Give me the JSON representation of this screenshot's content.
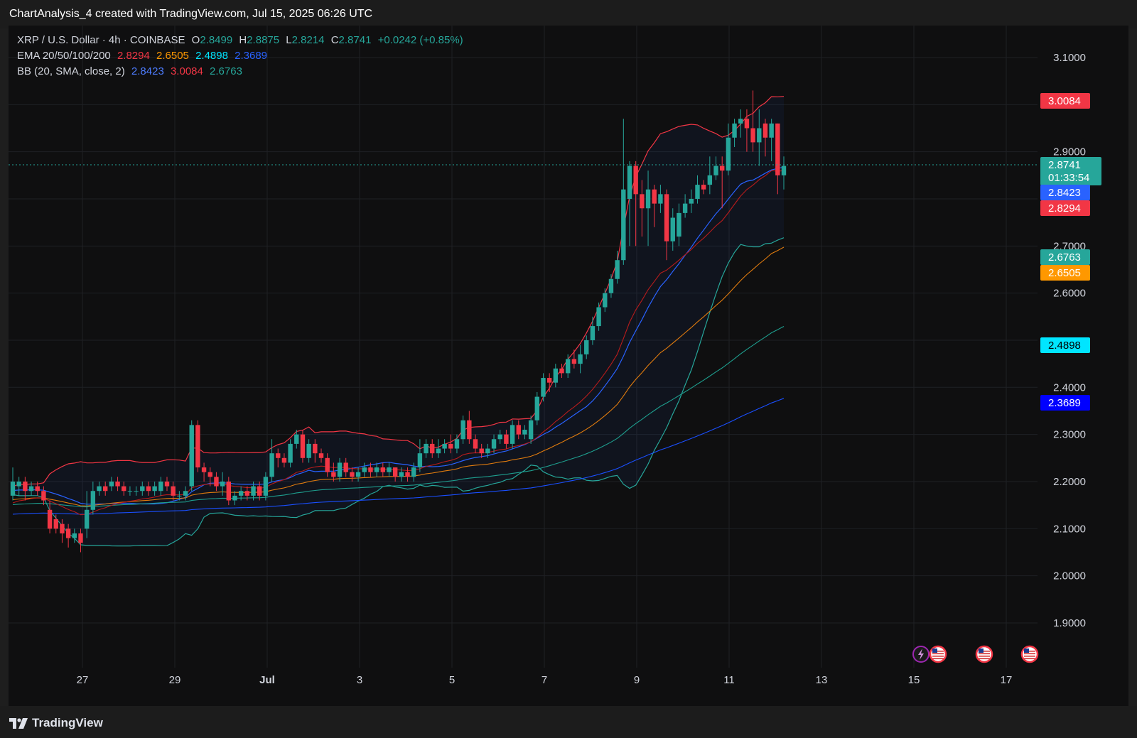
{
  "header": {
    "title": "ChartAnalysis_4 created with TradingView.com, Jul 15, 2025 06:26 UTC"
  },
  "legend": {
    "symbol": "XRP / U.S. Dollar · 4h · COINBASE",
    "open_label": "O",
    "open": "2.8499",
    "high_label": "H",
    "high": "2.8875",
    "low_label": "L",
    "low": "2.8214",
    "close_label": "C",
    "close": "2.8741",
    "change": "+0.0242 (+0.85%)",
    "ema_label": "EMA 20/50/100/200",
    "ema20": "2.8294",
    "ema50": "2.6505",
    "ema100": "2.4898",
    "ema200": "2.3689",
    "bb_label": "BB (20, SMA, close, 2)",
    "bb_basis": "2.8423",
    "bb_upper": "3.0084",
    "bb_lower": "2.6763"
  },
  "price_axis": {
    "ticks": [
      "3.1000",
      "2.9000",
      "2.7000",
      "2.6000",
      "2.4000",
      "2.3000",
      "2.2000",
      "2.1000",
      "2.0000",
      "1.9000"
    ]
  },
  "time_axis": {
    "ticks": [
      "27",
      "29",
      "Jul",
      "3",
      "5",
      "7",
      "9",
      "11",
      "13",
      "15",
      "17"
    ]
  },
  "price_labels": [
    {
      "id": "bb-upper",
      "text": "3.0084",
      "color": "#f23645"
    },
    {
      "id": "last-price",
      "text": "2.8741",
      "color": "#26a69a"
    },
    {
      "id": "countdown",
      "text": "01:33:54",
      "color": "#26a69a"
    },
    {
      "id": "bb-basis",
      "text": "2.8423",
      "color": "#2962ff"
    },
    {
      "id": "ema20",
      "text": "2.8294",
      "color": "#f23645"
    },
    {
      "id": "bb-lower",
      "text": "2.6763",
      "color": "#26a69a"
    },
    {
      "id": "ema50",
      "text": "2.6505",
      "color": "#ff9800"
    },
    {
      "id": "ema100",
      "text": "2.4898",
      "color": "#00e5ff"
    },
    {
      "id": "ema200",
      "text": "2.3689",
      "color": "#0000ff"
    }
  ],
  "colors": {
    "up": "#26a69a",
    "down": "#f23645",
    "ema20": "#b71c1c",
    "ema50": "#e07b0e",
    "ema100": "#1e9e8e",
    "ema200": "#1a4fff",
    "bb_upper": "#f23645",
    "bb_basis": "#2962ff",
    "bb_lower": "#26a69a"
  },
  "events": [
    {
      "icon": "lightning-icon"
    },
    {
      "icon": "us-flag-icon"
    },
    {
      "icon": "us-flag-icon"
    },
    {
      "icon": "us-flag-icon"
    }
  ],
  "footer": {
    "brand": "TradingView"
  },
  "chart_data": {
    "type": "candlestick",
    "symbol": "XRP / U.S. Dollar",
    "interval": "4h",
    "exchange": "COINBASE",
    "x_ticks": [
      "27",
      "29",
      "Jul",
      "3",
      "5",
      "7",
      "9",
      "11",
      "13",
      "15",
      "17"
    ],
    "ylim": [
      1.8,
      3.15
    ],
    "candles": [
      [
        2.17,
        2.2,
        2.23,
        2.16
      ],
      [
        2.19,
        2.2,
        2.21,
        2.17
      ],
      [
        2.2,
        2.18,
        2.21,
        2.16
      ],
      [
        2.18,
        2.19,
        2.2,
        2.17
      ],
      [
        2.19,
        2.18,
        2.2,
        2.17
      ],
      [
        2.18,
        2.16,
        2.19,
        2.15
      ],
      [
        2.14,
        2.1,
        2.16,
        2.09
      ],
      [
        2.12,
        2.1,
        2.13,
        2.09
      ],
      [
        2.11,
        2.09,
        2.12,
        2.07
      ],
      [
        2.1,
        2.08,
        2.11,
        2.06
      ],
      [
        2.08,
        2.09,
        2.1,
        2.07
      ],
      [
        2.09,
        2.07,
        2.1,
        2.05
      ],
      [
        2.1,
        2.14,
        2.18,
        2.08
      ],
      [
        2.14,
        2.18,
        2.2,
        2.13
      ],
      [
        2.18,
        2.19,
        2.2,
        2.17
      ],
      [
        2.19,
        2.18,
        2.2,
        2.17
      ],
      [
        2.19,
        2.2,
        2.21,
        2.18
      ],
      [
        2.2,
        2.19,
        2.21,
        2.18
      ],
      [
        2.19,
        2.18,
        2.2,
        2.17
      ],
      [
        2.18,
        2.18,
        2.19,
        2.17
      ],
      [
        2.18,
        2.18,
        2.19,
        2.17
      ],
      [
        2.18,
        2.19,
        2.2,
        2.17
      ],
      [
        2.19,
        2.18,
        2.2,
        2.17
      ],
      [
        2.18,
        2.19,
        2.2,
        2.17
      ],
      [
        2.18,
        2.2,
        2.21,
        2.17
      ],
      [
        2.2,
        2.19,
        2.21,
        2.18
      ],
      [
        2.19,
        2.17,
        2.2,
        2.16
      ],
      [
        2.17,
        2.17,
        2.18,
        2.16
      ],
      [
        2.17,
        2.18,
        2.19,
        2.16
      ],
      [
        2.19,
        2.32,
        2.33,
        2.18
      ],
      [
        2.32,
        2.23,
        2.33,
        2.22
      ],
      [
        2.23,
        2.22,
        2.24,
        2.2
      ],
      [
        2.22,
        2.21,
        2.23,
        2.19
      ],
      [
        2.21,
        2.19,
        2.22,
        2.18
      ],
      [
        2.19,
        2.2,
        2.22,
        2.17
      ],
      [
        2.2,
        2.16,
        2.21,
        2.15
      ],
      [
        2.16,
        2.17,
        2.18,
        2.15
      ],
      [
        2.17,
        2.18,
        2.19,
        2.16
      ],
      [
        2.18,
        2.17,
        2.19,
        2.16
      ],
      [
        2.17,
        2.19,
        2.2,
        2.16
      ],
      [
        2.19,
        2.17,
        2.2,
        2.16
      ],
      [
        2.17,
        2.21,
        2.22,
        2.16
      ],
      [
        2.21,
        2.26,
        2.29,
        2.2
      ],
      [
        2.26,
        2.25,
        2.27,
        2.23
      ],
      [
        2.25,
        2.24,
        2.26,
        2.23
      ],
      [
        2.24,
        2.28,
        2.29,
        2.23
      ],
      [
        2.28,
        2.3,
        2.31,
        2.27
      ],
      [
        2.3,
        2.25,
        2.31,
        2.24
      ],
      [
        2.25,
        2.28,
        2.29,
        2.24
      ],
      [
        2.28,
        2.26,
        2.29,
        2.24
      ],
      [
        2.26,
        2.25,
        2.27,
        2.24
      ],
      [
        2.25,
        2.22,
        2.26,
        2.21
      ],
      [
        2.22,
        2.21,
        2.24,
        2.2
      ],
      [
        2.21,
        2.24,
        2.25,
        2.2
      ],
      [
        2.24,
        2.22,
        2.25,
        2.21
      ],
      [
        2.22,
        2.21,
        2.23,
        2.2
      ],
      [
        2.21,
        2.22,
        2.23,
        2.2
      ],
      [
        2.22,
        2.23,
        2.24,
        2.21
      ],
      [
        2.23,
        2.22,
        2.24,
        2.21
      ],
      [
        2.22,
        2.23,
        2.24,
        2.21
      ],
      [
        2.23,
        2.22,
        2.24,
        2.21
      ],
      [
        2.22,
        2.23,
        2.24,
        2.21
      ],
      [
        2.23,
        2.21,
        2.23,
        2.2
      ],
      [
        2.21,
        2.22,
        2.23,
        2.2
      ],
      [
        2.22,
        2.21,
        2.23,
        2.2
      ],
      [
        2.21,
        2.23,
        2.24,
        2.2
      ],
      [
        2.23,
        2.26,
        2.29,
        2.22
      ],
      [
        2.26,
        2.28,
        2.29,
        2.25
      ],
      [
        2.28,
        2.26,
        2.29,
        2.25
      ],
      [
        2.26,
        2.27,
        2.29,
        2.25
      ],
      [
        2.27,
        2.28,
        2.29,
        2.26
      ],
      [
        2.28,
        2.27,
        2.3,
        2.26
      ],
      [
        2.27,
        2.29,
        2.3,
        2.26
      ],
      [
        2.29,
        2.33,
        2.34,
        2.28
      ],
      [
        2.33,
        2.29,
        2.35,
        2.28
      ],
      [
        2.29,
        2.27,
        2.3,
        2.26
      ],
      [
        2.27,
        2.26,
        2.28,
        2.25
      ],
      [
        2.26,
        2.27,
        2.28,
        2.25
      ],
      [
        2.27,
        2.29,
        2.3,
        2.26
      ],
      [
        2.29,
        2.3,
        2.31,
        2.28
      ],
      [
        2.3,
        2.28,
        2.31,
        2.27
      ],
      [
        2.28,
        2.32,
        2.33,
        2.27
      ],
      [
        2.32,
        2.3,
        2.33,
        2.29
      ],
      [
        2.3,
        2.31,
        2.32,
        2.29
      ],
      [
        2.29,
        2.33,
        2.34,
        2.28
      ],
      [
        2.33,
        2.38,
        2.39,
        2.32
      ],
      [
        2.38,
        2.42,
        2.43,
        2.37
      ],
      [
        2.42,
        2.41,
        2.43,
        2.39
      ],
      [
        2.41,
        2.44,
        2.45,
        2.4
      ],
      [
        2.44,
        2.43,
        2.45,
        2.42
      ],
      [
        2.43,
        2.46,
        2.47,
        2.42
      ],
      [
        2.46,
        2.45,
        2.48,
        2.44
      ],
      [
        2.45,
        2.47,
        2.49,
        2.43
      ],
      [
        2.47,
        2.5,
        2.51,
        2.46
      ],
      [
        2.5,
        2.53,
        2.55,
        2.49
      ],
      [
        2.53,
        2.57,
        2.58,
        2.52
      ],
      [
        2.57,
        2.6,
        2.61,
        2.56
      ],
      [
        2.6,
        2.63,
        2.64,
        2.59
      ],
      [
        2.63,
        2.67,
        2.69,
        2.62
      ],
      [
        2.67,
        2.82,
        2.97,
        2.66
      ],
      [
        2.8,
        2.87,
        2.88,
        2.7
      ],
      [
        2.87,
        2.81,
        2.88,
        2.7
      ],
      [
        2.81,
        2.78,
        2.84,
        2.72
      ],
      [
        2.78,
        2.82,
        2.86,
        2.7
      ],
      [
        2.82,
        2.79,
        2.83,
        2.74
      ],
      [
        2.79,
        2.81,
        2.83,
        2.77
      ],
      [
        2.81,
        2.71,
        2.82,
        2.67
      ],
      [
        2.71,
        2.76,
        2.78,
        2.69
      ],
      [
        2.72,
        2.77,
        2.79,
        2.7
      ],
      [
        2.77,
        2.79,
        2.81,
        2.76
      ],
      [
        2.79,
        2.8,
        2.82,
        2.77
      ],
      [
        2.8,
        2.83,
        2.85,
        2.79
      ],
      [
        2.83,
        2.82,
        2.84,
        2.81
      ],
      [
        2.83,
        2.85,
        2.89,
        2.81
      ],
      [
        2.85,
        2.87,
        2.89,
        2.84
      ],
      [
        2.87,
        2.86,
        2.89,
        2.78
      ],
      [
        2.86,
        2.93,
        2.96,
        2.85
      ],
      [
        2.93,
        2.96,
        2.97,
        2.91
      ],
      [
        2.96,
        2.97,
        2.99,
        2.93
      ],
      [
        2.97,
        2.95,
        2.99,
        2.9
      ],
      [
        2.95,
        2.92,
        3.03,
        2.9
      ],
      [
        2.92,
        2.95,
        2.99,
        2.87
      ],
      [
        2.96,
        2.93,
        2.97,
        2.89
      ],
      [
        2.93,
        2.96,
        2.97,
        2.88
      ],
      [
        2.96,
        2.85,
        2.96,
        2.81
      ],
      [
        2.85,
        2.87,
        2.89,
        2.82
      ]
    ],
    "ema20_last": 2.8294,
    "ema50_last": 2.6505,
    "ema100_last": 2.4898,
    "ema200_last": 2.3689,
    "bb_upper_last": 3.0084,
    "bb_basis_last": 2.8423,
    "bb_lower_last": 2.6763,
    "last_price": 2.8741,
    "countdown": "01:33:54"
  }
}
